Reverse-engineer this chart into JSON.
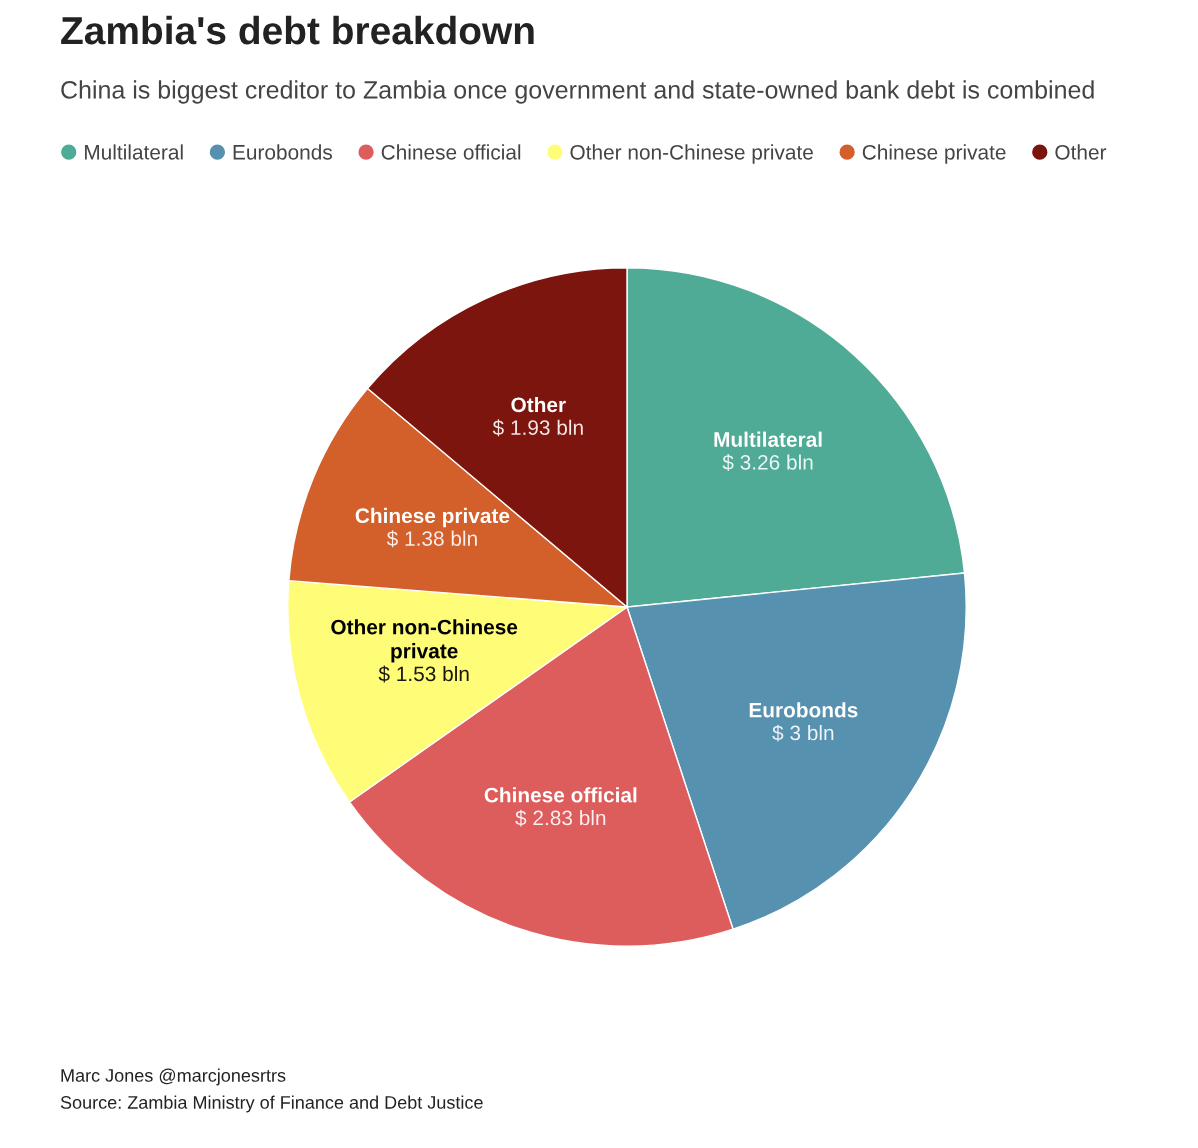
{
  "chart_data": {
    "type": "pie",
    "title": "Zambia's debt breakdown",
    "subtitle": "China is biggest creditor to Zambia once government and state-owned bank debt is combined",
    "categories": [
      "Multilateral",
      "Eurobonds",
      "Chinese official",
      "Other non-Chinese private",
      "Chinese private",
      "Other"
    ],
    "values": [
      3.26,
      3,
      2.83,
      1.53,
      1.38,
      1.93
    ],
    "colors": [
      "#4fab96",
      "#5791b0",
      "#dd5c5c",
      "#fffc78",
      "#d35f2a",
      "#7c150e"
    ],
    "value_labels": [
      "$ 3.26 bln",
      "$ 3 bln",
      "$ 2.83 bln",
      "$ 1.53 bln",
      "$ 1.38 bln",
      "$ 1.93 bln"
    ],
    "legend": "top",
    "annotations": [
      "Marc Jones @marcjonesrtrs",
      "Source: Zambia Ministry of Finance and Debt Justice"
    ]
  }
}
